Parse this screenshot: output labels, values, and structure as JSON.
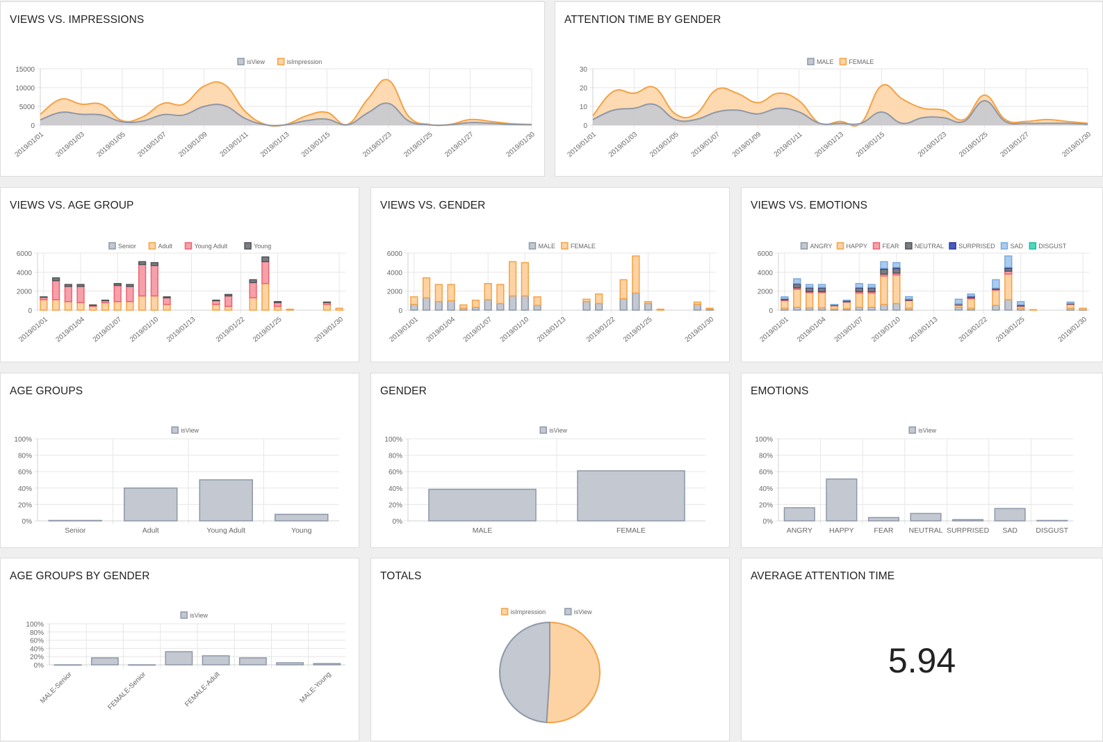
{
  "panels": {
    "views_vs_impressions": "VIEWS VS. IMPRESSIONS",
    "attention_by_gender": "ATTENTION TIME BY GENDER",
    "views_vs_age_group": "VIEWS VS. AGE GROUP",
    "views_vs_gender": "VIEWS VS. GENDER",
    "views_vs_emotions": "VIEWS VS. EMOTIONS",
    "age_groups": "AGE GROUPS",
    "gender": "GENDER",
    "emotions": "EMOTIONS",
    "age_groups_by_gender": "AGE GROUPS BY GENDER",
    "totals": "TOTALS",
    "average_attention_time": "AVERAGE ATTENTION TIME"
  },
  "average_attention_time": {
    "value": "5.94"
  },
  "colors": {
    "gray": "#8d97a8",
    "gray_fill": "#c3c8d1",
    "orange": "#f5a142",
    "orange_fill": "#fdd3a4",
    "red": "#ee6070",
    "red_fill": "#f6a0a9",
    "dark": "#4f5255",
    "navy": "#2b3a8c",
    "lightblue": "#a9cbef",
    "teal": "#4fd8c0"
  },
  "chart_data": [
    {
      "id": "views_vs_impressions",
      "type": "area",
      "x": [
        "2019/01/01",
        "2019/01/02",
        "2019/01/03",
        "2019/01/04",
        "2019/01/05",
        "2019/01/06",
        "2019/01/07",
        "2019/01/08",
        "2019/01/09",
        "2019/01/10",
        "2019/01/11",
        "2019/01/12",
        "2019/01/13",
        "2019/01/14",
        "2019/01/15",
        "2019/01/16",
        "2019/01/22",
        "2019/01/23",
        "2019/01/24",
        "2019/01/25",
        "2019/01/26",
        "2019/01/27",
        "2019/01/28",
        "2019/01/29",
        "2019/01/30"
      ],
      "xticks": [
        "2019/01/01",
        "2019/01/03",
        "2019/01/05",
        "2019/01/07",
        "2019/01/09",
        "2019/01/11",
        "2019/01/13",
        "2019/01/15",
        "2019/01/23",
        "2019/01/25",
        "2019/01/27",
        "2019/01/30"
      ],
      "ylim": [
        0,
        15000
      ],
      "yticks": [
        0,
        5000,
        10000,
        15000
      ],
      "series": [
        {
          "name": "isView",
          "values": [
            1400,
            3400,
            2900,
            2700,
            900,
            1100,
            2800,
            2700,
            5000,
            5200,
            1800,
            100,
            100,
            1200,
            1600,
            100,
            3300,
            5800,
            1100,
            100,
            100,
            700,
            500,
            200,
            100
          ]
        },
        {
          "name": "isImpression",
          "values": [
            2900,
            6900,
            5600,
            5500,
            1200,
            2200,
            5800,
            5600,
            10400,
            10800,
            3700,
            200,
            200,
            2500,
            3400,
            200,
            7000,
            12000,
            2300,
            200,
            200,
            1500,
            1000,
            400,
            200
          ]
        }
      ]
    },
    {
      "id": "attention_by_gender",
      "type": "area",
      "x": [
        "2019/01/01",
        "2019/01/02",
        "2019/01/03",
        "2019/01/04",
        "2019/01/05",
        "2019/01/06",
        "2019/01/07",
        "2019/01/08",
        "2019/01/09",
        "2019/01/10",
        "2019/01/11",
        "2019/01/12",
        "2019/01/13",
        "2019/01/14",
        "2019/01/15",
        "2019/01/16",
        "2019/01/22",
        "2019/01/23",
        "2019/01/24",
        "2019/01/25",
        "2019/01/26",
        "2019/01/27",
        "2019/01/28",
        "2019/01/29",
        "2019/01/30"
      ],
      "xticks": [
        "2019/01/01",
        "2019/01/03",
        "2019/01/05",
        "2019/01/07",
        "2019/01/09",
        "2019/01/11",
        "2019/01/13",
        "2019/01/15",
        "2019/01/23",
        "2019/01/25",
        "2019/01/27",
        "2019/01/30"
      ],
      "ylim": [
        0,
        30
      ],
      "yticks": [
        0,
        10,
        20,
        30
      ],
      "series": [
        {
          "name": "MALE",
          "values": [
            3,
            8,
            9,
            11,
            3,
            3,
            7,
            8,
            6,
            9,
            7,
            1,
            1,
            1,
            7,
            1,
            4,
            4,
            2,
            13,
            2,
            1,
            1,
            1,
            0.5
          ]
        },
        {
          "name": "FEMALE",
          "values": [
            5,
            18,
            17,
            20,
            6,
            6,
            19,
            17,
            12,
            17,
            13,
            1,
            2,
            1,
            21,
            14,
            9,
            8,
            3,
            16,
            3,
            2,
            3,
            2,
            1
          ]
        }
      ]
    },
    {
      "id": "views_vs_age_group",
      "type": "bar",
      "stacked": true,
      "categories": [
        "2019/01/01",
        "2019/01/02",
        "2019/01/03",
        "2019/01/04",
        "2019/01/05",
        "2019/01/06",
        "2019/01/07",
        "2019/01/08",
        "2019/01/09",
        "2019/01/10",
        "2019/01/11",
        "2019/01/12",
        "2019/01/13",
        "2019/01/14",
        "2019/01/15",
        "2019/01/16",
        "2019/01/22",
        "2019/01/23",
        "2019/01/24",
        "2019/01/25",
        "2019/01/26",
        "2019/01/27",
        "2019/01/28",
        "2019/01/29",
        "2019/01/30"
      ],
      "xticks": [
        "2019/01/01",
        "2019/01/04",
        "2019/01/07",
        "2019/01/10",
        "2019/01/13",
        "2019/01/22",
        "2019/01/25",
        "2019/01/30"
      ],
      "ylim": [
        0,
        6000
      ],
      "yticks": [
        0,
        2000,
        4000,
        6000
      ],
      "series": [
        {
          "name": "Senior",
          "values": [
            0,
            0,
            0,
            0,
            0,
            0,
            0,
            0,
            0,
            0,
            0,
            0,
            0,
            0,
            0,
            0,
            0,
            0,
            0,
            0,
            0,
            0,
            0,
            0,
            0
          ]
        },
        {
          "name": "Adult",
          "values": [
            1100,
            1100,
            900,
            800,
            400,
            800,
            900,
            900,
            1500,
            1500,
            600,
            0,
            0,
            0,
            600,
            400,
            0,
            1300,
            2800,
            400,
            100,
            0,
            0,
            600,
            200
          ]
        },
        {
          "name": "Young Adult",
          "values": [
            250,
            2000,
            1600,
            1700,
            100,
            200,
            1700,
            1600,
            3300,
            3200,
            700,
            0,
            0,
            0,
            400,
            1100,
            0,
            1600,
            2300,
            400,
            0,
            0,
            0,
            200,
            0
          ]
        },
        {
          "name": "Young",
          "values": [
            50,
            300,
            200,
            200,
            50,
            50,
            200,
            200,
            300,
            300,
            100,
            0,
            0,
            0,
            50,
            150,
            0,
            300,
            500,
            100,
            0,
            0,
            0,
            50,
            0
          ]
        }
      ]
    },
    {
      "id": "views_vs_gender",
      "type": "bar",
      "stacked": true,
      "categories": [
        "2019/01/01",
        "2019/01/02",
        "2019/01/03",
        "2019/01/04",
        "2019/01/05",
        "2019/01/06",
        "2019/01/07",
        "2019/01/08",
        "2019/01/09",
        "2019/01/10",
        "2019/01/11",
        "2019/01/12",
        "2019/01/13",
        "2019/01/14",
        "2019/01/15",
        "2019/01/16",
        "2019/01/22",
        "2019/01/23",
        "2019/01/24",
        "2019/01/25",
        "2019/01/26",
        "2019/01/27",
        "2019/01/28",
        "2019/01/29",
        "2019/01/30"
      ],
      "xticks": [
        "2019/01/01",
        "2019/01/04",
        "2019/01/07",
        "2019/01/10",
        "2019/01/13",
        "2019/01/22",
        "2019/01/25",
        "2019/01/30"
      ],
      "ylim": [
        0,
        6000
      ],
      "yticks": [
        0,
        2000,
        4000,
        6000
      ],
      "series": [
        {
          "name": "MALE",
          "values": [
            600,
            1300,
            900,
            1000,
            200,
            300,
            1100,
            700,
            1500,
            1500,
            500,
            0,
            0,
            0,
            900,
            700,
            0,
            1200,
            1800,
            700,
            0,
            0,
            0,
            600,
            100
          ]
        },
        {
          "name": "FEMALE",
          "values": [
            800,
            2100,
            1800,
            1700,
            350,
            750,
            1700,
            2000,
            3600,
            3500,
            900,
            0,
            0,
            0,
            250,
            1000,
            0,
            2000,
            3900,
            200,
            100,
            0,
            0,
            250,
            100
          ]
        }
      ]
    },
    {
      "id": "views_vs_emotions",
      "type": "bar",
      "stacked": true,
      "categories": [
        "2019/01/01",
        "2019/01/02",
        "2019/01/03",
        "2019/01/04",
        "2019/01/05",
        "2019/01/06",
        "2019/01/07",
        "2019/01/08",
        "2019/01/09",
        "2019/01/10",
        "2019/01/11",
        "2019/01/12",
        "2019/01/13",
        "2019/01/14",
        "2019/01/15",
        "2019/01/16",
        "2019/01/22",
        "2019/01/23",
        "2019/01/24",
        "2019/01/25",
        "2019/01/26",
        "2019/01/27",
        "2019/01/28",
        "2019/01/29",
        "2019/01/30"
      ],
      "xticks": [
        "2019/01/01",
        "2019/01/04",
        "2019/01/07",
        "2019/01/10",
        "2019/01/13",
        "2019/01/22",
        "2019/01/25",
        "2019/01/30"
      ],
      "ylim": [
        0,
        6000
      ],
      "yticks": [
        0,
        2000,
        4000,
        6000
      ],
      "series": [
        {
          "name": "ANGRY",
          "values": [
            200,
            300,
            250,
            250,
            100,
            150,
            300,
            300,
            600,
            700,
            200,
            0,
            0,
            0,
            300,
            200,
            0,
            500,
            1100,
            200,
            0,
            0,
            0,
            200,
            50
          ]
        },
        {
          "name": "HAPPY",
          "values": [
            800,
            1900,
            1600,
            1600,
            350,
            700,
            1500,
            1500,
            3000,
            3000,
            800,
            0,
            0,
            0,
            200,
            1000,
            0,
            1600,
            2700,
            200,
            50,
            0,
            0,
            400,
            150
          ]
        },
        {
          "name": "FEAR",
          "values": [
            100,
            150,
            100,
            100,
            50,
            50,
            150,
            150,
            200,
            200,
            50,
            0,
            0,
            0,
            100,
            100,
            0,
            100,
            300,
            50,
            0,
            0,
            0,
            50,
            0
          ]
        },
        {
          "name": "NEUTRAL",
          "values": [
            100,
            400,
            400,
            400,
            50,
            100,
            400,
            400,
            500,
            500,
            100,
            0,
            0,
            0,
            50,
            150,
            0,
            100,
            300,
            100,
            0,
            0,
            0,
            50,
            0
          ]
        },
        {
          "name": "SURPRISED",
          "values": [
            20,
            50,
            50,
            50,
            10,
            20,
            50,
            50,
            100,
            100,
            20,
            0,
            0,
            0,
            10,
            30,
            0,
            20,
            100,
            20,
            0,
            0,
            0,
            10,
            0
          ]
        },
        {
          "name": "SAD",
          "values": [
            180,
            500,
            300,
            300,
            40,
            30,
            400,
            300,
            700,
            500,
            250,
            0,
            0,
            0,
            490,
            220,
            0,
            880,
            1200,
            330,
            0,
            0,
            0,
            140,
            0
          ]
        },
        {
          "name": "DISGUST",
          "values": [
            0,
            0,
            0,
            0,
            0,
            0,
            0,
            0,
            0,
            0,
            0,
            0,
            0,
            0,
            0,
            0,
            0,
            0,
            0,
            0,
            0,
            0,
            0,
            0,
            0
          ]
        }
      ]
    },
    {
      "id": "age_groups",
      "type": "bar",
      "categories": [
        "Senior",
        "Adult",
        "Young Adult",
        "Young"
      ],
      "ylim": [
        0,
        100
      ],
      "yticks": [
        "0%",
        "20%",
        "40%",
        "60%",
        "80%",
        "100%"
      ],
      "series": [
        {
          "name": "isView",
          "values": [
            0.5,
            40,
            50,
            8
          ]
        }
      ]
    },
    {
      "id": "gender",
      "type": "bar",
      "categories": [
        "MALE",
        "FEMALE"
      ],
      "ylim": [
        0,
        100
      ],
      "yticks": [
        "0%",
        "20%",
        "40%",
        "60%",
        "80%",
        "100%"
      ],
      "series": [
        {
          "name": "isView",
          "values": [
            38.5,
            61
          ]
        }
      ]
    },
    {
      "id": "emotions",
      "type": "bar",
      "categories": [
        "ANGRY",
        "HAPPY",
        "FEAR",
        "NEUTRAL",
        "SURPRISED",
        "SAD",
        "DISGUST"
      ],
      "ylim": [
        0,
        100
      ],
      "yticks": [
        "0%",
        "20%",
        "40%",
        "60%",
        "80%",
        "100%"
      ],
      "series": [
        {
          "name": "isView",
          "values": [
            16,
            51,
            4,
            9,
            1.5,
            15,
            0.5
          ]
        }
      ]
    },
    {
      "id": "age_groups_by_gender",
      "type": "bar",
      "categories": [
        "MALE-Senior",
        "",
        "FEMALE-Senior",
        "",
        "FEMALE-Adult",
        "",
        "",
        "MALE-Young"
      ],
      "xticks": [
        "MALE-Senior",
        "FEMALE-Senior",
        "FEMALE-Adult",
        "MALE-Young"
      ],
      "ylim": [
        0,
        100
      ],
      "yticks": [
        "0%",
        "20%",
        "40%",
        "60%",
        "80%",
        "100%"
      ],
      "series": [
        {
          "name": "isView",
          "values": [
            0,
            17,
            0,
            32,
            22,
            17,
            5,
            3
          ]
        }
      ]
    },
    {
      "id": "totals",
      "type": "pie",
      "categories": [
        "isImpression",
        "isView"
      ],
      "values": [
        51,
        49
      ]
    }
  ]
}
